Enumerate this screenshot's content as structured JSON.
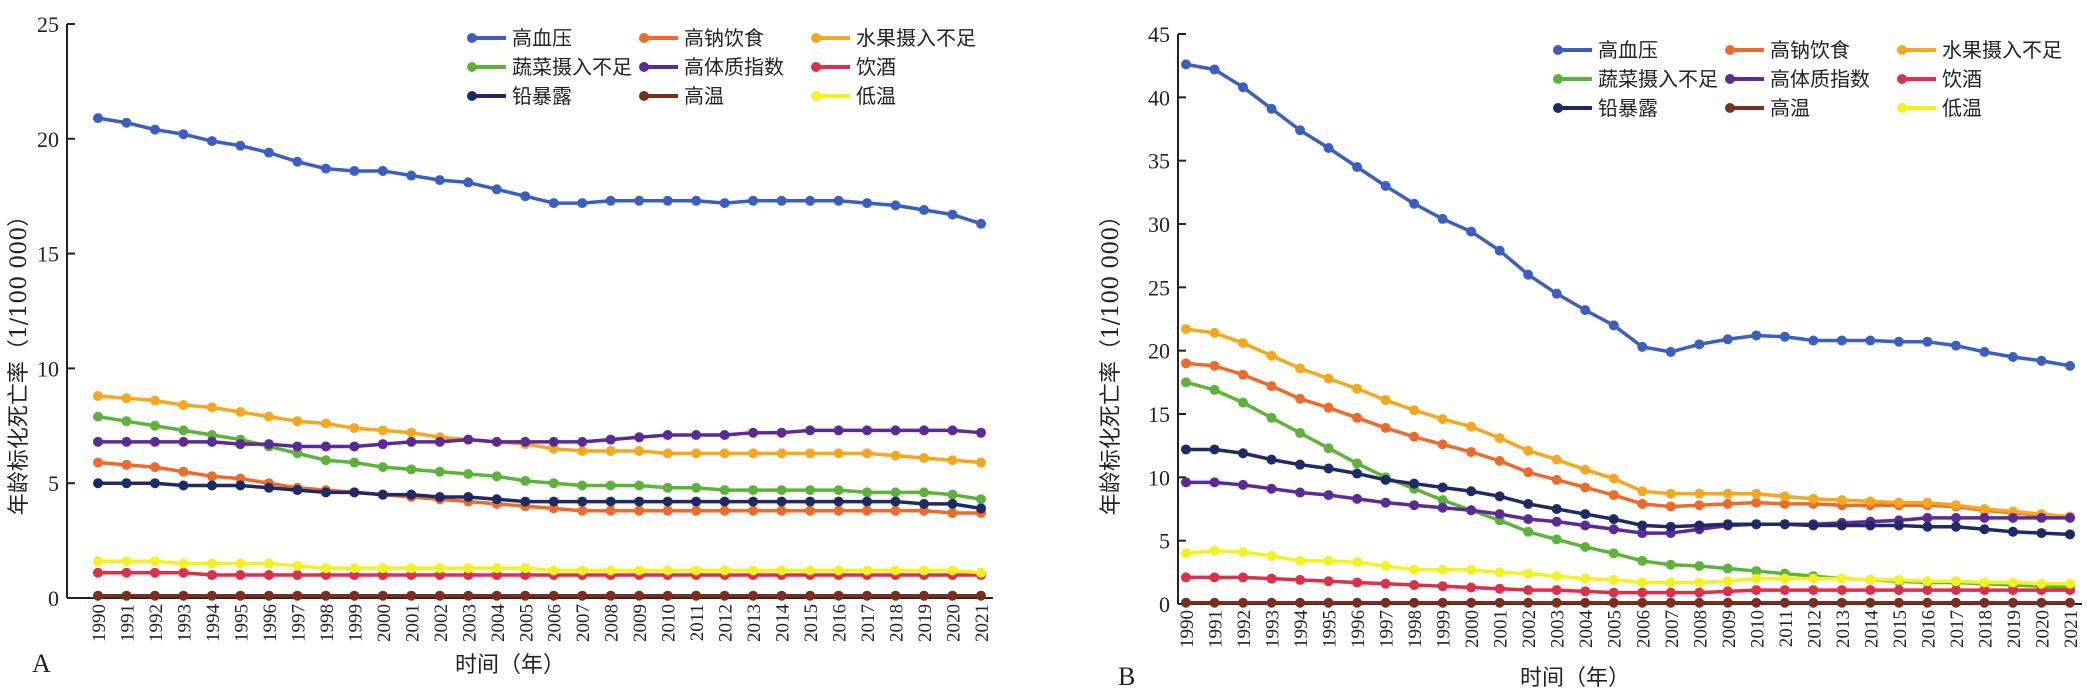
{
  "chart_data": [
    {
      "type": "line",
      "panel_label": "A",
      "xlabel": "时间（年）",
      "ylabel": "年龄标化死亡率（1/100 000）",
      "ylim": [
        0,
        25
      ],
      "yticks": [
        0,
        5,
        10,
        15,
        20,
        25
      ],
      "legend_position": "top-right",
      "x": [
        1990,
        1991,
        1992,
        1993,
        1994,
        1995,
        1996,
        1997,
        1998,
        1999,
        2000,
        2001,
        2002,
        2003,
        2004,
        2005,
        2006,
        2007,
        2008,
        2009,
        2010,
        2011,
        2012,
        2013,
        2014,
        2015,
        2016,
        2017,
        2018,
        2019,
        2020,
        2021
      ],
      "series": [
        {
          "name": "高血压",
          "color": "#3a5fc0",
          "values": [
            20.9,
            20.7,
            20.4,
            20.2,
            19.9,
            19.7,
            19.4,
            19.0,
            18.7,
            18.6,
            18.6,
            18.4,
            18.2,
            18.1,
            17.8,
            17.5,
            17.2,
            17.2,
            17.3,
            17.3,
            17.3,
            17.3,
            17.2,
            17.3,
            17.3,
            17.3,
            17.3,
            17.2,
            17.1,
            16.9,
            16.7,
            16.3
          ]
        },
        {
          "name": "高钠饮食",
          "color": "#ee6a2a",
          "values": [
            5.9,
            5.8,
            5.7,
            5.5,
            5.3,
            5.2,
            5.0,
            4.8,
            4.7,
            4.6,
            4.5,
            4.4,
            4.3,
            4.2,
            4.1,
            4.0,
            3.9,
            3.8,
            3.8,
            3.8,
            3.8,
            3.8,
            3.8,
            3.8,
            3.8,
            3.8,
            3.8,
            3.8,
            3.8,
            3.8,
            3.7,
            3.7
          ]
        },
        {
          "name": "水果摄入不足",
          "color": "#f5a81e",
          "values": [
            8.8,
            8.7,
            8.6,
            8.4,
            8.3,
            8.1,
            7.9,
            7.7,
            7.6,
            7.4,
            7.3,
            7.2,
            7.0,
            6.9,
            6.8,
            6.7,
            6.5,
            6.4,
            6.4,
            6.4,
            6.3,
            6.3,
            6.3,
            6.3,
            6.3,
            6.3,
            6.3,
            6.3,
            6.2,
            6.1,
            6.0,
            5.9
          ]
        },
        {
          "name": "蔬菜摄入不足",
          "color": "#5db33a",
          "values": [
            7.9,
            7.7,
            7.5,
            7.3,
            7.1,
            6.9,
            6.6,
            6.3,
            6.0,
            5.9,
            5.7,
            5.6,
            5.5,
            5.4,
            5.3,
            5.1,
            5.0,
            4.9,
            4.9,
            4.9,
            4.8,
            4.8,
            4.7,
            4.7,
            4.7,
            4.7,
            4.7,
            4.6,
            4.6,
            4.6,
            4.5,
            4.3
          ]
        },
        {
          "name": "高体质指数",
          "color": "#5b2a97",
          "values": [
            6.8,
            6.8,
            6.8,
            6.8,
            6.8,
            6.7,
            6.7,
            6.6,
            6.6,
            6.6,
            6.7,
            6.8,
            6.8,
            6.9,
            6.8,
            6.8,
            6.8,
            6.8,
            6.9,
            7.0,
            7.1,
            7.1,
            7.1,
            7.2,
            7.2,
            7.3,
            7.3,
            7.3,
            7.3,
            7.3,
            7.3,
            7.2
          ]
        },
        {
          "name": "饮酒",
          "color": "#dc2f4a",
          "values": [
            1.1,
            1.1,
            1.1,
            1.1,
            1.0,
            1.0,
            1.0,
            1.0,
            1.0,
            1.0,
            1.0,
            1.0,
            1.0,
            1.0,
            1.0,
            1.0,
            1.0,
            1.0,
            1.0,
            1.0,
            1.0,
            1.0,
            1.0,
            1.0,
            1.0,
            1.0,
            1.0,
            1.0,
            1.0,
            1.0,
            1.0,
            1.0
          ]
        },
        {
          "name": "铅暴露",
          "color": "#1e2a66",
          "values": [
            5.0,
            5.0,
            5.0,
            4.9,
            4.9,
            4.9,
            4.8,
            4.7,
            4.6,
            4.6,
            4.5,
            4.5,
            4.4,
            4.4,
            4.3,
            4.2,
            4.2,
            4.2,
            4.2,
            4.2,
            4.2,
            4.2,
            4.2,
            4.2,
            4.2,
            4.2,
            4.2,
            4.2,
            4.2,
            4.1,
            4.1,
            3.9
          ]
        },
        {
          "name": "高温",
          "color": "#7a2f1e",
          "values": [
            0.1,
            0.1,
            0.1,
            0.1,
            0.1,
            0.1,
            0.1,
            0.1,
            0.1,
            0.1,
            0.1,
            0.1,
            0.1,
            0.1,
            0.1,
            0.1,
            0.1,
            0.1,
            0.1,
            0.1,
            0.1,
            0.1,
            0.1,
            0.1,
            0.1,
            0.1,
            0.1,
            0.1,
            0.1,
            0.1,
            0.1,
            0.1
          ]
        },
        {
          "name": "低温",
          "color": "#f2f21e",
          "values": [
            1.6,
            1.6,
            1.6,
            1.5,
            1.5,
            1.5,
            1.5,
            1.4,
            1.3,
            1.3,
            1.3,
            1.3,
            1.3,
            1.3,
            1.3,
            1.3,
            1.2,
            1.2,
            1.2,
            1.2,
            1.2,
            1.2,
            1.2,
            1.2,
            1.2,
            1.2,
            1.2,
            1.2,
            1.2,
            1.2,
            1.2,
            1.1
          ]
        }
      ]
    },
    {
      "type": "line",
      "panel_label": "B",
      "xlabel": "时间（年）",
      "ylabel": "年龄标化死亡率（1/100 000）",
      "ylim": [
        0,
        45
      ],
      "yticks": [
        0,
        5,
        10,
        15,
        20,
        25,
        30,
        35,
        40,
        45
      ],
      "legend_position": "top-right",
      "x": [
        1990,
        1991,
        1992,
        1993,
        1994,
        1995,
        1996,
        1997,
        1998,
        1999,
        2000,
        2001,
        2002,
        2003,
        2004,
        2005,
        2006,
        2007,
        2008,
        2009,
        2010,
        2011,
        2012,
        2013,
        2014,
        2015,
        2016,
        2017,
        2018,
        2019,
        2020,
        2021
      ],
      "series": [
        {
          "name": "高血压",
          "color": "#3a5fc0",
          "values": [
            42.6,
            42.2,
            40.8,
            39.1,
            37.4,
            36.0,
            34.5,
            33.0,
            31.6,
            30.4,
            29.4,
            27.9,
            26.0,
            24.5,
            23.2,
            22.0,
            20.3,
            19.9,
            20.5,
            20.9,
            21.2,
            21.1,
            20.8,
            20.8,
            20.8,
            20.7,
            20.7,
            20.4,
            19.9,
            19.5,
            19.2,
            18.8
          ]
        },
        {
          "name": "高钠饮食",
          "color": "#ee6a2a",
          "values": [
            19.0,
            18.8,
            18.1,
            17.2,
            16.2,
            15.5,
            14.7,
            13.9,
            13.2,
            12.6,
            12.0,
            11.3,
            10.4,
            9.8,
            9.2,
            8.6,
            7.9,
            7.7,
            7.8,
            7.9,
            8.0,
            7.9,
            7.9,
            7.8,
            7.8,
            7.8,
            7.8,
            7.7,
            7.4,
            7.2,
            7.0,
            6.9
          ]
        },
        {
          "name": "水果摄入不足",
          "color": "#f5a81e",
          "values": [
            21.7,
            21.4,
            20.6,
            19.6,
            18.6,
            17.8,
            17.0,
            16.1,
            15.3,
            14.6,
            14.0,
            13.1,
            12.1,
            11.4,
            10.6,
            9.9,
            8.9,
            8.7,
            8.7,
            8.7,
            8.7,
            8.5,
            8.3,
            8.2,
            8.1,
            8.0,
            8.0,
            7.8,
            7.5,
            7.3,
            7.1,
            6.9
          ]
        },
        {
          "name": "蔬菜摄入不足",
          "color": "#5db33a",
          "values": [
            17.5,
            16.9,
            15.9,
            14.7,
            13.5,
            12.3,
            11.1,
            10.0,
            9.1,
            8.2,
            7.4,
            6.6,
            5.7,
            5.1,
            4.5,
            4.0,
            3.4,
            3.1,
            3.0,
            2.8,
            2.6,
            2.4,
            2.2,
            2.0,
            1.9,
            1.8,
            1.7,
            1.7,
            1.6,
            1.5,
            1.4,
            1.3
          ]
        },
        {
          "name": "高体质指数",
          "color": "#5b2a97",
          "values": [
            9.6,
            9.6,
            9.4,
            9.1,
            8.8,
            8.6,
            8.3,
            8.0,
            7.8,
            7.6,
            7.4,
            7.1,
            6.7,
            6.5,
            6.2,
            5.9,
            5.6,
            5.6,
            5.9,
            6.2,
            6.3,
            6.3,
            6.3,
            6.4,
            6.5,
            6.6,
            6.8,
            6.8,
            6.8,
            6.8,
            6.8,
            6.8
          ]
        },
        {
          "name": "饮酒",
          "color": "#dc2f4a",
          "values": [
            2.1,
            2.1,
            2.1,
            2.0,
            1.9,
            1.8,
            1.7,
            1.6,
            1.5,
            1.4,
            1.3,
            1.2,
            1.1,
            1.1,
            1.0,
            0.9,
            0.9,
            0.9,
            0.9,
            1.0,
            1.1,
            1.1,
            1.1,
            1.1,
            1.1,
            1.1,
            1.1,
            1.1,
            1.1,
            1.1,
            1.1,
            1.1
          ]
        },
        {
          "name": "铅暴露",
          "color": "#1e2a66",
          "values": [
            12.2,
            12.2,
            11.9,
            11.4,
            11.0,
            10.7,
            10.3,
            9.8,
            9.5,
            9.2,
            8.9,
            8.5,
            7.9,
            7.5,
            7.1,
            6.7,
            6.2,
            6.1,
            6.2,
            6.3,
            6.3,
            6.3,
            6.2,
            6.2,
            6.2,
            6.2,
            6.1,
            6.1,
            5.9,
            5.7,
            5.6,
            5.5
          ]
        },
        {
          "name": "高温",
          "color": "#7a2f1e",
          "values": [
            0.1,
            0.1,
            0.1,
            0.1,
            0.1,
            0.1,
            0.1,
            0.1,
            0.1,
            0.1,
            0.1,
            0.1,
            0.1,
            0.1,
            0.1,
            0.1,
            0.1,
            0.1,
            0.1,
            0.1,
            0.1,
            0.1,
            0.1,
            0.1,
            0.1,
            0.1,
            0.1,
            0.1,
            0.1,
            0.1,
            0.1,
            0.1
          ]
        },
        {
          "name": "低温",
          "color": "#f2f21e",
          "values": [
            4.0,
            4.2,
            4.1,
            3.8,
            3.4,
            3.4,
            3.3,
            3.0,
            2.7,
            2.7,
            2.7,
            2.5,
            2.4,
            2.2,
            2.0,
            1.9,
            1.7,
            1.7,
            1.7,
            1.8,
            2.0,
            2.0,
            2.0,
            2.0,
            1.9,
            1.9,
            1.8,
            1.8,
            1.7,
            1.7,
            1.6,
            1.6
          ]
        }
      ]
    }
  ]
}
